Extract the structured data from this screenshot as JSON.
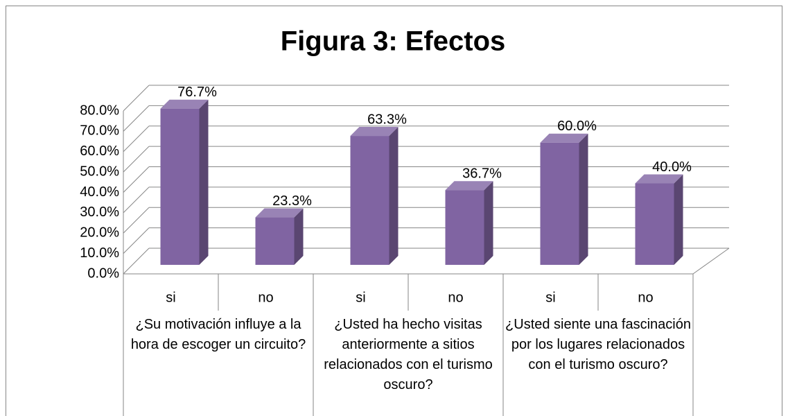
{
  "chart_data": {
    "type": "bar3d",
    "title": "Figura 3: Efectos",
    "categories": [
      "si",
      "no",
      "si",
      "no",
      "si",
      "no"
    ],
    "groups": [
      "¿Su motivación influye a la hora de escoger un circuito?",
      "¿Usted ha hecho visitas anteriormente a sitios relacionados  con el turismo oscuro?",
      "¿Usted siente una fascinación por los lugares relacionados con el turismo oscuro?"
    ],
    "values": [
      76.7,
      23.3,
      63.3,
      36.7,
      60.0,
      40.0
    ],
    "value_labels": [
      "76.7%",
      "23.3%",
      "63.3%",
      "36.7%",
      "60.0%",
      "40.0%"
    ],
    "color": "#8064a2",
    "ylim": [
      0,
      80
    ],
    "yticks": [
      {
        "value": 0,
        "label": "0.0%"
      },
      {
        "value": 10,
        "label": "10.0%"
      },
      {
        "value": 20,
        "label": "20.0%"
      },
      {
        "value": 30,
        "label": "30.0%"
      },
      {
        "value": 40,
        "label": "40.0%"
      },
      {
        "value": 50,
        "label": "50.0%"
      },
      {
        "value": 60,
        "label": "60.0%"
      },
      {
        "value": 70,
        "label": "70.0%"
      },
      {
        "value": 80,
        "label": "80.0%"
      }
    ],
    "grid": true
  }
}
